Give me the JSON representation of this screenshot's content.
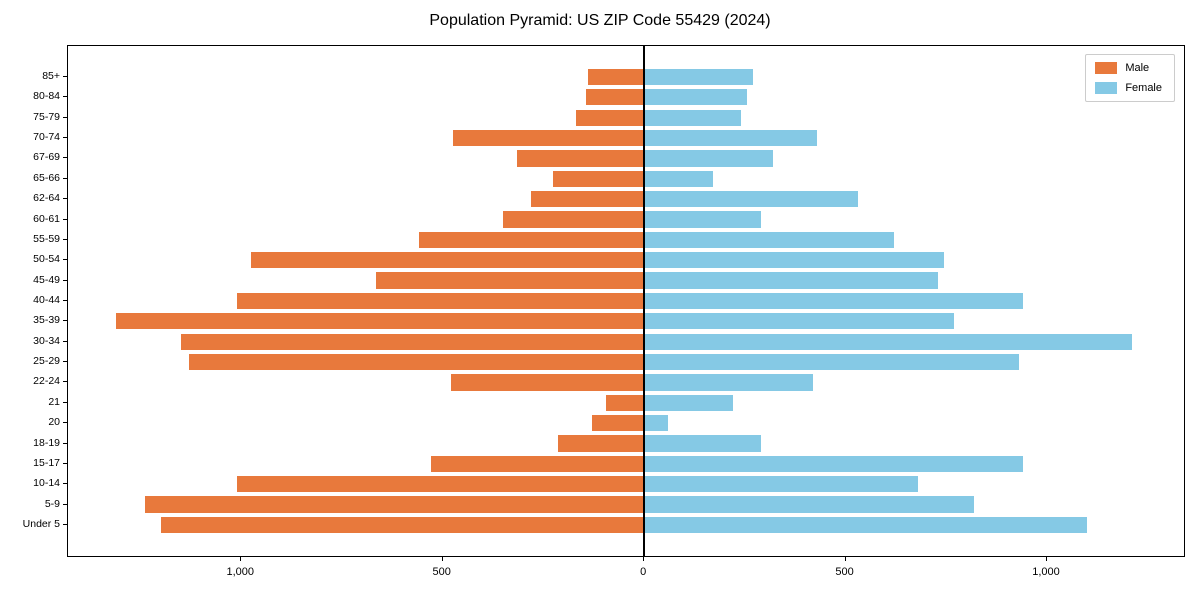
{
  "title": "Population Pyramid: US ZIP Code 55429 (2024)",
  "legend": {
    "male_label": "Male",
    "female_label": "Female"
  },
  "colors": {
    "male": "#E8793C",
    "female": "#85C9E5",
    "axis": "#000000"
  },
  "chart_data": {
    "type": "bar",
    "orientation": "horizontal-population-pyramid",
    "title": "Population Pyramid: US ZIP Code 55429 (2024)",
    "grid": false,
    "legend_position": "top-right",
    "categories_bottom_to_top": [
      "Under 5",
      "5-9",
      "10-14",
      "15-17",
      "18-19",
      "20",
      "21",
      "22-24",
      "25-29",
      "30-34",
      "35-39",
      "40-44",
      "45-49",
      "50-54",
      "55-59",
      "60-61",
      "62-64",
      "65-66",
      "67-69",
      "70-74",
      "75-79",
      "80-84",
      "85+"
    ],
    "series": [
      {
        "name": "Male",
        "side": "left",
        "color": "#E8793C",
        "values": [
          1200,
          1240,
          1010,
          530,
          215,
          130,
          95,
          480,
          1130,
          1150,
          1310,
          1010,
          665,
          975,
          560,
          350,
          280,
          225,
          315,
          475,
          170,
          145,
          140
        ]
      },
      {
        "name": "Female",
        "side": "right",
        "color": "#85C9E5",
        "values": [
          1100,
          820,
          680,
          940,
          290,
          60,
          220,
          420,
          930,
          1210,
          770,
          940,
          730,
          745,
          620,
          290,
          530,
          170,
          320,
          430,
          240,
          255,
          270
        ]
      }
    ],
    "xlim": [
      -1430,
      1340
    ],
    "x_tick_values": [
      -1000,
      -500,
      0,
      500,
      1000
    ],
    "x_tick_labels": [
      "1,000",
      "500",
      "0",
      "500",
      "1,000"
    ]
  }
}
